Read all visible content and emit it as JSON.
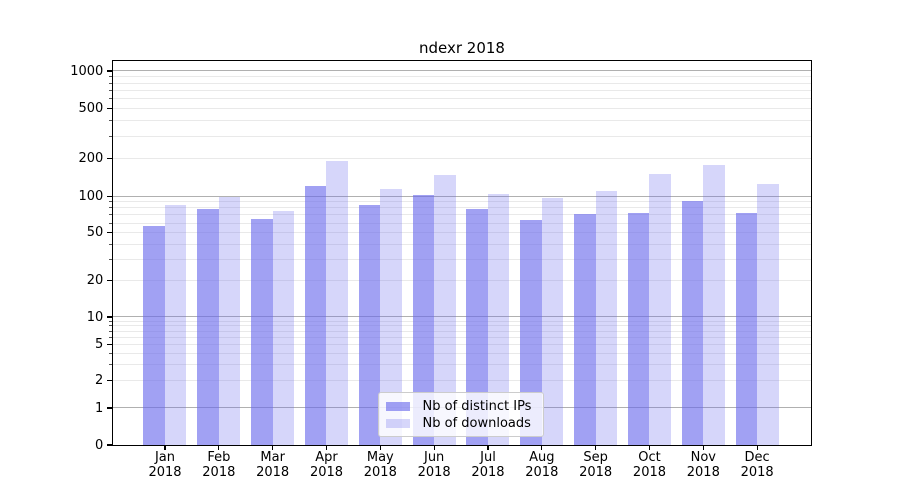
{
  "chart_data": {
    "type": "bar",
    "title": "ndexr 2018",
    "categories": [
      "Jan",
      "Feb",
      "Mar",
      "Apr",
      "May",
      "Jun",
      "Jul",
      "Aug",
      "Sep",
      "Oct",
      "Nov",
      "Dec"
    ],
    "year_label": "2018",
    "series": [
      {
        "name": "Nb of distinct IPs",
        "color": "rgba(103,103,236,0.62)",
        "values": [
          57,
          78,
          65,
          120,
          84,
          102,
          78,
          64,
          71,
          73,
          91,
          73
        ]
      },
      {
        "name": "Nb of downloads",
        "color": "rgba(103,103,236,0.27)",
        "values": [
          84,
          98,
          76,
          192,
          115,
          149,
          104,
          97,
          111,
          150,
          178,
          125
        ]
      }
    ],
    "yscale": "symlog",
    "ylim": [
      0,
      1000
    ],
    "yticks": [
      0,
      1,
      2,
      5,
      10,
      20,
      50,
      100,
      200,
      500,
      1000
    ],
    "grid": true,
    "legend_position": "lower center",
    "colors": {
      "major_grid": "#b0b0b0",
      "minor_grid": "#e9e9e9",
      "spine": "#000000",
      "legend_border": "#cccccc"
    }
  }
}
